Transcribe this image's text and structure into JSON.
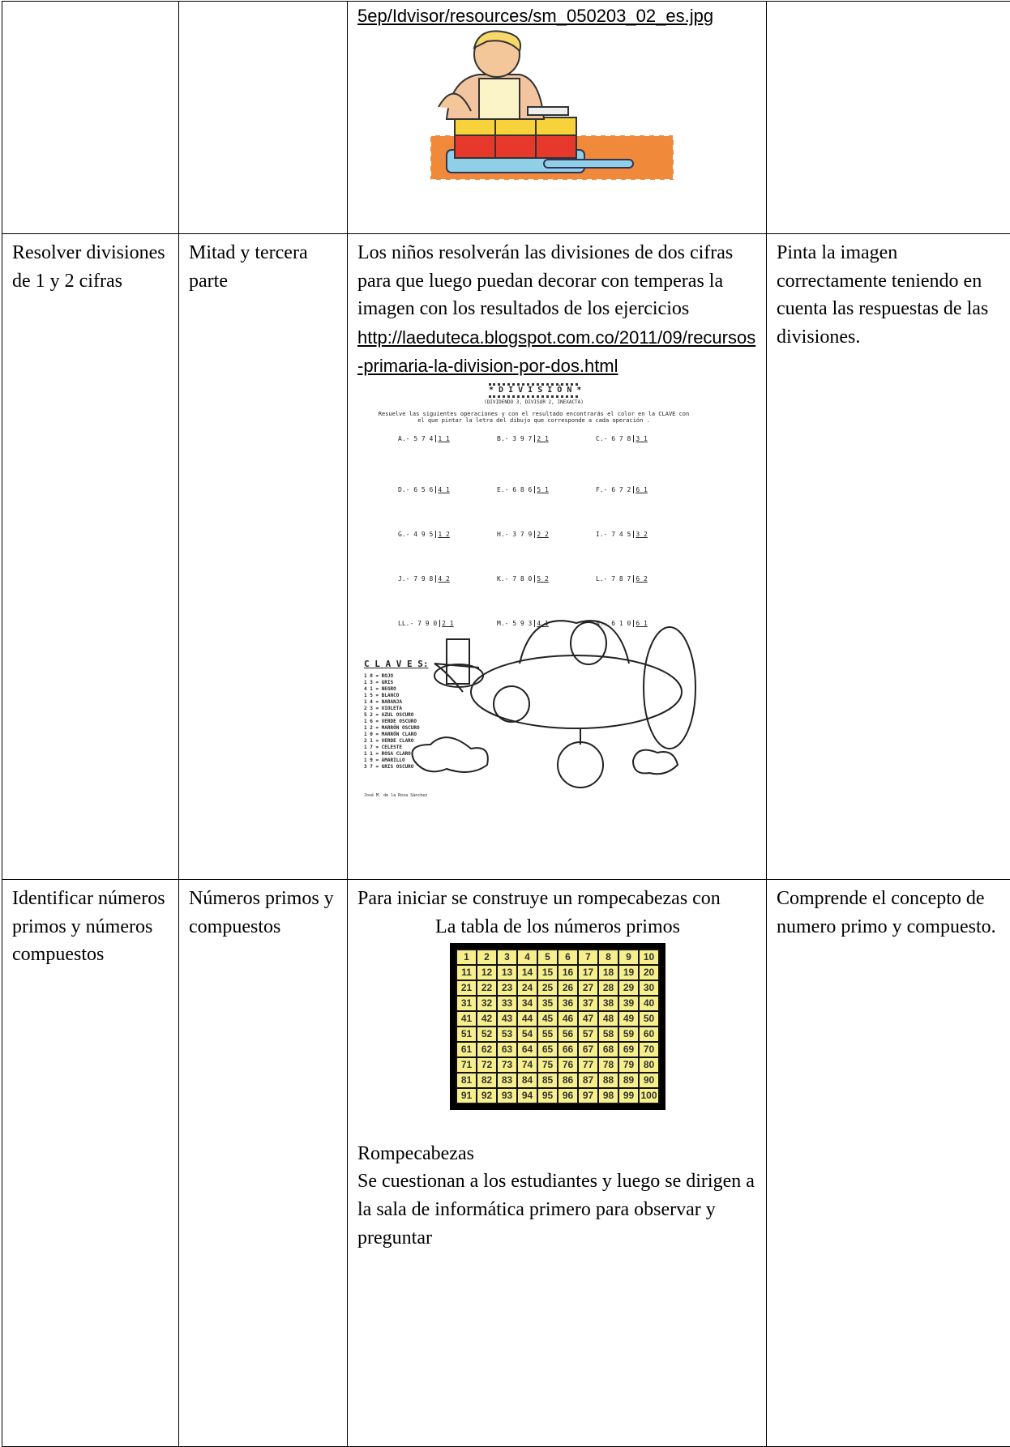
{
  "table": {
    "rows": [
      {
        "activity": {
          "link": "5ep/Idvisor/resources/sm_050203_02_es.jpg"
        }
      },
      {
        "objective": "Resolver divisiones de 1 y 2 cifras",
        "topic": "Mitad y tercera parte",
        "activity": {
          "text": "Los niños resolverán las divisiones de dos cifras para que luego puedan decorar con temperas la imagen con los resultados de los ejercicios",
          "link": "http://laeduteca.blogspot.com.co/2011/09/recursos-primaria-la-division-por-dos.html",
          "worksheet": {
            "title": "* D I V I S I Ó N *",
            "subtitle": "(DIVIDENDO 3, DIVISOR 2, INEXACTA)",
            "instruction": "Resuelve las siguientes operaciones y con el resultado encontrarás el color en la CLAVE con el que pintar la letra del dibujo que corresponde a cada operación .",
            "operations": [
              {
                "dividend": "A.- 5 7 4",
                "divisor": "1 1"
              },
              {
                "dividend": "B.- 3 9 7",
                "divisor": "2 1"
              },
              {
                "dividend": "C.- 6 7 8",
                "divisor": "3 1"
              },
              {
                "dividend": "D.- 6 5 6",
                "divisor": "4 1"
              },
              {
                "dividend": "E.- 6 8 6",
                "divisor": "5 1"
              },
              {
                "dividend": "F.- 6 7 2",
                "divisor": "6 1"
              },
              {
                "dividend": "G.- 4 9 5",
                "divisor": "1 2"
              },
              {
                "dividend": "H.- 3 7 9",
                "divisor": "2 2"
              },
              {
                "dividend": "I.- 7 4 5",
                "divisor": "3 2"
              },
              {
                "dividend": "J.- 7 9 8",
                "divisor": "4 2"
              },
              {
                "dividend": "K.- 7 8 0",
                "divisor": "5 2"
              },
              {
                "dividend": "L.- 7 8 7",
                "divisor": "6 2"
              },
              {
                "dividend": "LL.- 7 9 0",
                "divisor": "2 1"
              },
              {
                "dividend": "M.- 5 9 3",
                "divisor": "4 1"
              },
              {
                "dividend": "N.- 6 1 0",
                "divisor": "6 1"
              }
            ],
            "keys_title": "C L A V E S:",
            "keys": [
              "1 8 = ROJO",
              "1 3 = GRIS",
              "4 1 = NEGRO",
              "1 5 = BLANCO",
              "1 4 = NARANJA",
              "2 3 = VIOLETA",
              "5 2 = AZUL OSCURO",
              "1 6 = VERDE OSCURO",
              "1 2 = MARRÓN OSCURO",
              "1 0 = MARRÓN CLARO",
              "2 1 = VERDE CLARO",
              "1 7 = CELESTE",
              "1 1 = ROSA CLARO",
              "1 9 = AMARILLO",
              "3 7 = GRIS OSCURO"
            ],
            "author": "José M. de la Rosa Sánchez"
          }
        },
        "evaluation": "Pinta la imagen correctamente teniendo en cuenta las respuestas de las divisiones."
      },
      {
        "objective": "Identificar números primos y números compuestos",
        "topic": "Números primos y compuestos",
        "activity": {
          "intro": "Para iniciar se construye un rompecabezas con",
          "table_caption": "La tabla de los números primos",
          "number_table": [
            [
              1,
              2,
              3,
              4,
              5,
              6,
              7,
              8,
              9,
              10
            ],
            [
              11,
              12,
              13,
              14,
              15,
              16,
              17,
              18,
              19,
              20
            ],
            [
              21,
              22,
              23,
              24,
              25,
              26,
              27,
              28,
              29,
              30
            ],
            [
              31,
              32,
              33,
              34,
              35,
              36,
              37,
              38,
              39,
              40
            ],
            [
              41,
              42,
              43,
              44,
              45,
              46,
              47,
              48,
              49,
              50
            ],
            [
              51,
              52,
              53,
              54,
              55,
              56,
              57,
              58,
              59,
              60
            ],
            [
              61,
              62,
              63,
              64,
              65,
              66,
              67,
              68,
              69,
              70
            ],
            [
              71,
              72,
              73,
              74,
              75,
              76,
              77,
              78,
              79,
              80
            ],
            [
              81,
              82,
              83,
              84,
              85,
              86,
              87,
              88,
              89,
              90
            ],
            [
              91,
              92,
              93,
              94,
              95,
              96,
              97,
              98,
              99,
              100
            ]
          ],
          "heading": "Rompecabezas",
          "text": "Se cuestionan a los estudiantes y luego se dirigen a la sala de informática primero para observar y preguntar"
        },
        "evaluation": "Comprende el concepto de numero primo y compuesto."
      }
    ]
  }
}
